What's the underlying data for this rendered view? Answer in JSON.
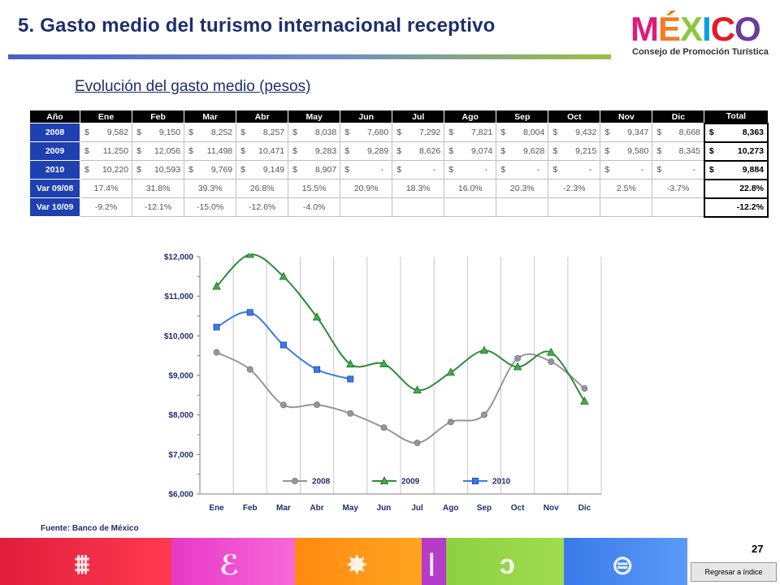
{
  "header": {
    "title": "5. Gasto medio del turismo internacional receptivo",
    "subtitle": "Evolución del gasto medio (pesos)",
    "logo_text": "MÉXICO",
    "logo_subtext": "Consejo de Promoción Turística"
  },
  "colors": {
    "title": "#1f2f6b",
    "row_header_bg": "#1f40b0",
    "series_2008": "#969696",
    "series_2009": "#2e8b3a",
    "series_2009_marker": "#3cb043",
    "series_2010": "#3a7ae8"
  },
  "table": {
    "headers": [
      "Año",
      "Ene",
      "Feb",
      "Mar",
      "Abr",
      "May",
      "Jun",
      "Jul",
      "Ago",
      "Sep",
      "Oct",
      "Nov",
      "Dic",
      "Total"
    ],
    "currency_symbol": "$",
    "rows": [
      {
        "label": "2008",
        "kind": "money",
        "values": [
          "9,582",
          "9,150",
          "8,252",
          "8,257",
          "8,038",
          "7,680",
          "7,292",
          "7,821",
          "8,004",
          "9,432",
          "9,347",
          "8,668"
        ],
        "total": "8,363"
      },
      {
        "label": "2009",
        "kind": "money",
        "values": [
          "11,250",
          "12,056",
          "11,498",
          "10,471",
          "9,283",
          "9,289",
          "8,626",
          "9,074",
          "9,628",
          "9,215",
          "9,580",
          "8,345"
        ],
        "total": "10,273"
      },
      {
        "label": "2010",
        "kind": "money",
        "values": [
          "10,220",
          "10,593",
          "9,769",
          "9,149",
          "8,907",
          "-",
          "-",
          "-",
          "-",
          "-",
          "-",
          "-"
        ],
        "total": "9,884"
      },
      {
        "label": "Var 09/08",
        "kind": "pct",
        "values": [
          "17.4%",
          "31.8%",
          "39.3%",
          "26.8%",
          "15.5%",
          "20.9%",
          "18.3%",
          "16.0%",
          "20.3%",
          "-2.3%",
          "2.5%",
          "-3.7%"
        ],
        "total": "22.8%"
      },
      {
        "label": "Var 10/09",
        "kind": "pct",
        "values": [
          "-9.2%",
          "-12.1%",
          "-15.0%",
          "-12.6%",
          "-4.0%",
          "",
          "",
          "",
          "",
          "",
          "",
          ""
        ],
        "total": "-12.2%"
      }
    ]
  },
  "chart_data": {
    "type": "line",
    "categories": [
      "Ene",
      "Feb",
      "Mar",
      "Abr",
      "May",
      "Jun",
      "Jul",
      "Ago",
      "Sep",
      "Oct",
      "Nov",
      "Dic"
    ],
    "series": [
      {
        "name": "2008",
        "marker": "circle",
        "values": [
          9582,
          9150,
          8252,
          8257,
          8038,
          7680,
          7292,
          7821,
          8004,
          9432,
          9347,
          8668
        ]
      },
      {
        "name": "2009",
        "marker": "triangle",
        "values": [
          11250,
          12056,
          11498,
          10471,
          9283,
          9289,
          8626,
          9074,
          9628,
          9215,
          9580,
          8345
        ]
      },
      {
        "name": "2010",
        "marker": "square",
        "values": [
          10220,
          10593,
          9769,
          9149,
          8907,
          null,
          null,
          null,
          null,
          null,
          null,
          null
        ]
      }
    ],
    "yticks": [
      "$6,000",
      "$7,000",
      "$8,000",
      "$9,000",
      "$10,000",
      "$11,000",
      "$12,000"
    ],
    "ylim": [
      6000,
      12000
    ],
    "grid": "vertical",
    "legend": "bottom",
    "title": "",
    "xlabel": "",
    "ylabel": ""
  },
  "footer": {
    "source": "Fuente: Banco de México",
    "page_number": "27",
    "back_link": "Regresar a índice"
  }
}
